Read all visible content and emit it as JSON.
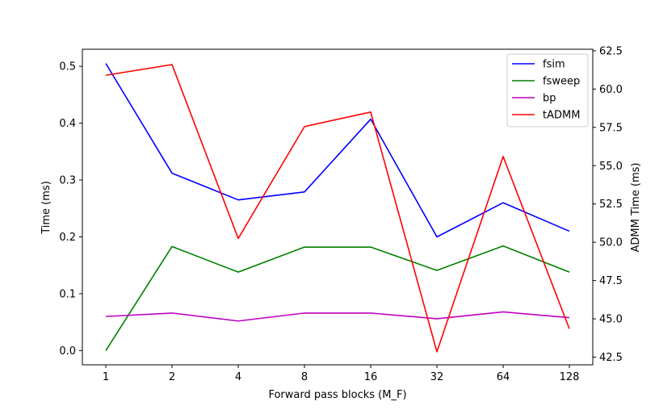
{
  "chart_data": {
    "type": "line",
    "title": "",
    "xlabel": "Forward pass blocks (M_F)",
    "ylabel": "Time (ms)",
    "ylabel_right": "ADMM Time (ms)",
    "categories": [
      "1",
      "2",
      "4",
      "8",
      "16",
      "32",
      "64",
      "128"
    ],
    "ylim": [
      -0.025,
      0.53
    ],
    "y_ticks": [
      "0.0",
      "0.1",
      "0.2",
      "0.3",
      "0.4",
      "0.5"
    ],
    "ylim_right": [
      42.0,
      62.6
    ],
    "y_ticks_right": [
      "42.5",
      "45.0",
      "47.5",
      "50.0",
      "52.5",
      "55.0",
      "57.5",
      "60.0",
      "62.5"
    ],
    "legend_position": "top-right",
    "grid": false,
    "series": [
      {
        "name": "fsim",
        "axis": "left",
        "color": "#0000ff",
        "values": [
          0.505,
          0.312,
          0.265,
          0.279,
          0.407,
          0.2,
          0.26,
          0.21
        ]
      },
      {
        "name": "fsweep",
        "axis": "left",
        "color": "#008000",
        "values": [
          0.0,
          0.183,
          0.138,
          0.182,
          0.182,
          0.141,
          0.184,
          0.138
        ]
      },
      {
        "name": "bp",
        "axis": "left",
        "color": "#bf00bf",
        "values": [
          0.06,
          0.066,
          0.052,
          0.066,
          0.066,
          0.056,
          0.068,
          0.058
        ]
      },
      {
        "name": "tADMM",
        "axis": "right",
        "color": "#ff0000",
        "values": [
          60.9,
          61.6,
          50.25,
          57.55,
          58.5,
          42.85,
          55.6,
          44.35
        ]
      }
    ]
  }
}
